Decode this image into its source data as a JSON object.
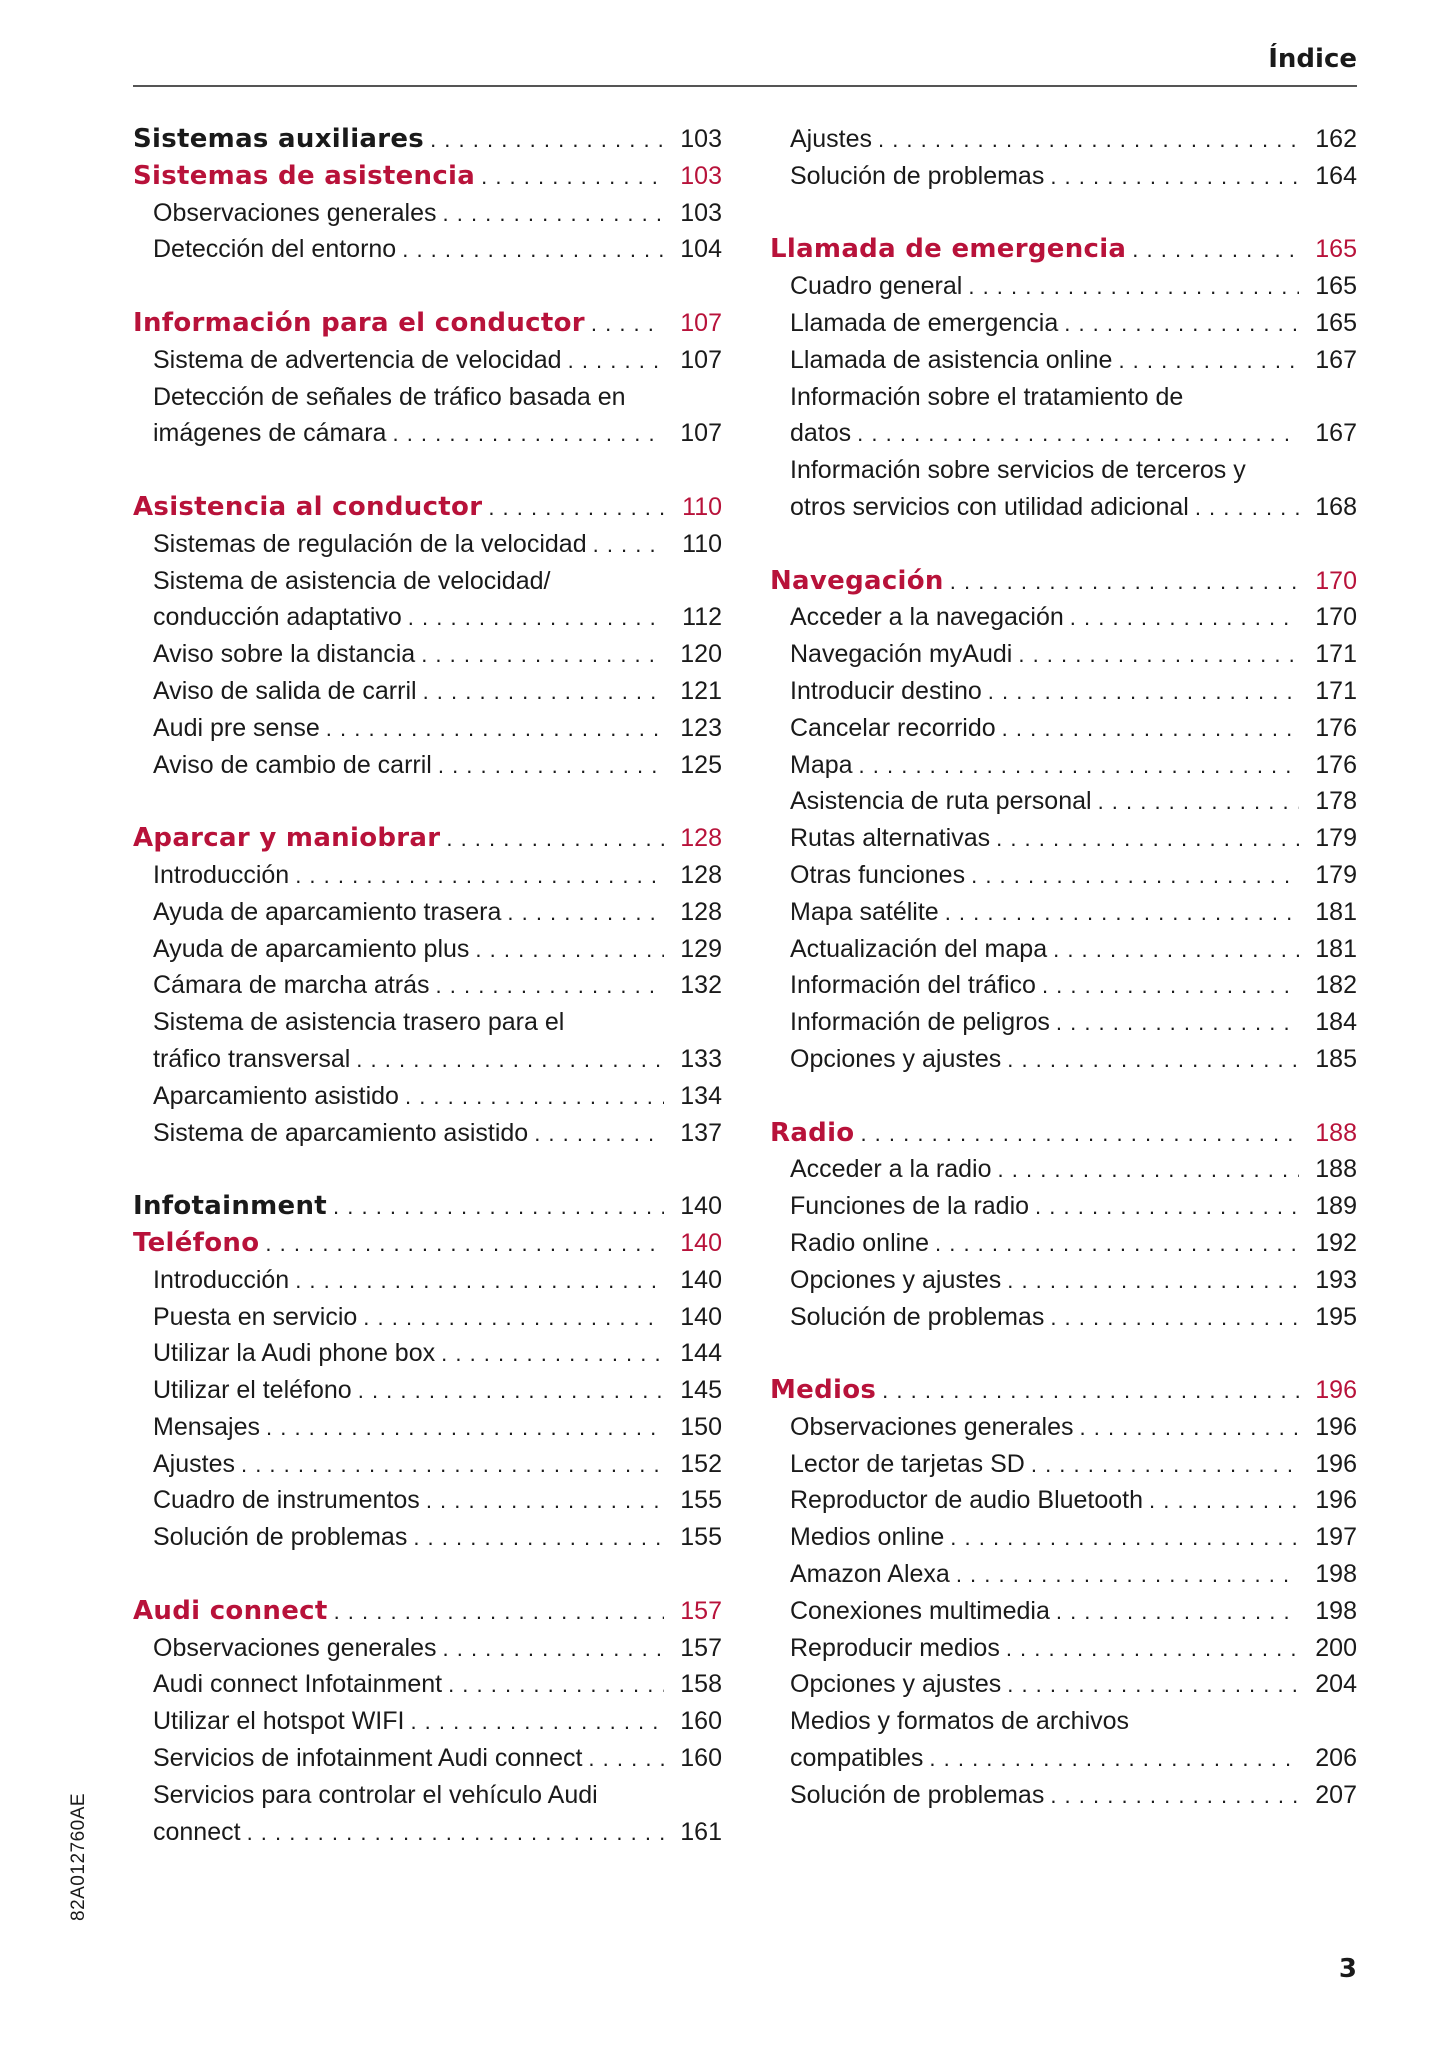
{
  "header": {
    "title": "Índice"
  },
  "colors": {
    "accent": "#b8123a",
    "text": "#1a1a1a",
    "rule": "#555555"
  },
  "columns": [
    {
      "sections": [
        {
          "entries": [
            {
              "level": "chapter",
              "text": "Sistemas auxiliares",
              "page": "103"
            },
            {
              "level": "section",
              "text": "Sistemas de asistencia",
              "page": "103"
            },
            {
              "level": "item",
              "text": "Observaciones generales",
              "page": "103"
            },
            {
              "level": "item",
              "text": "Detección del entorno",
              "page": "104"
            }
          ]
        },
        {
          "entries": [
            {
              "level": "section",
              "text": "Información para el conductor",
              "page": "107"
            },
            {
              "level": "item",
              "text": "Sistema de advertencia de velocidad",
              "page": "107"
            },
            {
              "level": "item",
              "text": "Detección de señales de tráfico basada en",
              "text_cont": "imágenes de cámara",
              "page": "107"
            }
          ]
        },
        {
          "entries": [
            {
              "level": "section",
              "text": "Asistencia al conductor",
              "page": "110"
            },
            {
              "level": "item",
              "text": "Sistemas de regulación de la velocidad",
              "page": "110"
            },
            {
              "level": "item",
              "text": "Sistema de asistencia de velocidad/",
              "text_cont": "conducción adaptativo",
              "page": "112"
            },
            {
              "level": "item",
              "text": "Aviso sobre la distancia",
              "page": "120"
            },
            {
              "level": "item",
              "text": "Aviso de salida de carril",
              "page": "121"
            },
            {
              "level": "item",
              "text": "Audi pre sense",
              "page": "123"
            },
            {
              "level": "item",
              "text": "Aviso de cambio de carril",
              "page": "125"
            }
          ]
        },
        {
          "entries": [
            {
              "level": "section",
              "text": "Aparcar y maniobrar",
              "page": "128"
            },
            {
              "level": "item",
              "text": "Introducción",
              "page": "128"
            },
            {
              "level": "item",
              "text": "Ayuda de aparcamiento trasera",
              "page": "128"
            },
            {
              "level": "item",
              "text": "Ayuda de aparcamiento plus",
              "page": "129"
            },
            {
              "level": "item",
              "text": "Cámara de marcha atrás",
              "page": "132"
            },
            {
              "level": "item",
              "text": "Sistema de asistencia trasero para el",
              "text_cont": "tráfico transversal",
              "page": "133"
            },
            {
              "level": "item",
              "text": "Aparcamiento asistido",
              "page": "134"
            },
            {
              "level": "item",
              "text": "Sistema de aparcamiento asistido",
              "page": "137"
            }
          ]
        },
        {
          "entries": [
            {
              "level": "chapter",
              "text": "Infotainment",
              "page": "140"
            },
            {
              "level": "section",
              "text": "Teléfono",
              "page": "140"
            },
            {
              "level": "item",
              "text": "Introducción",
              "page": "140"
            },
            {
              "level": "item",
              "text": "Puesta en servicio",
              "page": "140"
            },
            {
              "level": "item",
              "text": "Utilizar la Audi phone box",
              "page": "144"
            },
            {
              "level": "item",
              "text": "Utilizar el teléfono",
              "page": "145"
            },
            {
              "level": "item",
              "text": "Mensajes",
              "page": "150"
            },
            {
              "level": "item",
              "text": "Ajustes",
              "page": "152"
            },
            {
              "level": "item",
              "text": "Cuadro de instrumentos",
              "page": "155"
            },
            {
              "level": "item",
              "text": "Solución de problemas",
              "page": "155"
            }
          ]
        },
        {
          "entries": [
            {
              "level": "section",
              "text": "Audi connect",
              "page": "157"
            },
            {
              "level": "item",
              "text": "Observaciones generales",
              "page": "157"
            },
            {
              "level": "item",
              "text": "Audi connect Infotainment",
              "page": "158"
            },
            {
              "level": "item",
              "text": "Utilizar el hotspot WIFI",
              "page": "160"
            },
            {
              "level": "item",
              "text": "Servicios de infotainment Audi connect",
              "page": "160"
            },
            {
              "level": "item",
              "text": "Servicios para controlar el vehículo Audi",
              "text_cont": "connect",
              "page": "161"
            }
          ]
        }
      ]
    },
    {
      "sections": [
        {
          "entries": [
            {
              "level": "item",
              "text": "Ajustes",
              "page": "162"
            },
            {
              "level": "item",
              "text": "Solución de problemas",
              "page": "164"
            }
          ]
        },
        {
          "entries": [
            {
              "level": "section",
              "text": "Llamada de emergencia",
              "page": "165"
            },
            {
              "level": "item",
              "text": "Cuadro general",
              "page": "165"
            },
            {
              "level": "item",
              "text": "Llamada de emergencia",
              "page": "165"
            },
            {
              "level": "item",
              "text": "Llamada de asistencia online",
              "page": "167"
            },
            {
              "level": "item",
              "text": "Información sobre el tratamiento de",
              "text_cont": "datos",
              "page": "167"
            },
            {
              "level": "item",
              "text": "Información sobre servicios de terceros y",
              "text_cont": "otros servicios con utilidad adicional",
              "page": "168"
            }
          ]
        },
        {
          "entries": [
            {
              "level": "section",
              "text": "Navegación",
              "page": "170"
            },
            {
              "level": "item",
              "text": "Acceder a la navegación",
              "page": "170"
            },
            {
              "level": "item",
              "text": "Navegación myAudi",
              "page": "171"
            },
            {
              "level": "item",
              "text": "Introducir destino",
              "page": "171"
            },
            {
              "level": "item",
              "text": "Cancelar recorrido",
              "page": "176"
            },
            {
              "level": "item",
              "text": "Mapa",
              "page": "176"
            },
            {
              "level": "item",
              "text": "Asistencia de ruta personal",
              "page": "178"
            },
            {
              "level": "item",
              "text": "Rutas alternativas",
              "page": "179"
            },
            {
              "level": "item",
              "text": "Otras funciones",
              "page": "179"
            },
            {
              "level": "item",
              "text": "Mapa satélite",
              "page": "181"
            },
            {
              "level": "item",
              "text": "Actualización del mapa",
              "page": "181"
            },
            {
              "level": "item",
              "text": "Información del tráfico",
              "page": "182"
            },
            {
              "level": "item",
              "text": "Información de peligros",
              "page": "184"
            },
            {
              "level": "item",
              "text": "Opciones y ajustes",
              "page": "185"
            }
          ]
        },
        {
          "entries": [
            {
              "level": "section",
              "text": "Radio",
              "page": "188"
            },
            {
              "level": "item",
              "text": "Acceder a la radio",
              "page": "188"
            },
            {
              "level": "item",
              "text": "Funciones de la radio",
              "page": "189"
            },
            {
              "level": "item",
              "text": "Radio online",
              "page": "192"
            },
            {
              "level": "item",
              "text": "Opciones y ajustes",
              "page": "193"
            },
            {
              "level": "item",
              "text": "Solución de problemas",
              "page": "195"
            }
          ]
        },
        {
          "entries": [
            {
              "level": "section",
              "text": "Medios",
              "page": "196"
            },
            {
              "level": "item",
              "text": "Observaciones generales",
              "page": "196"
            },
            {
              "level": "item",
              "text": "Lector de tarjetas SD",
              "page": "196"
            },
            {
              "level": "item",
              "text": "Reproductor de audio Bluetooth",
              "page": "196"
            },
            {
              "level": "item",
              "text": "Medios online",
              "page": "197"
            },
            {
              "level": "item",
              "text": "Amazon Alexa",
              "page": "198"
            },
            {
              "level": "item",
              "text": "Conexiones multimedia",
              "page": "198"
            },
            {
              "level": "item",
              "text": "Reproducir medios",
              "page": "200"
            },
            {
              "level": "item",
              "text": "Opciones y ajustes",
              "page": "204"
            },
            {
              "level": "item",
              "text": "Medios y formatos de archivos",
              "text_cont": "compatibles",
              "page": "206"
            },
            {
              "level": "item",
              "text": "Solución de problemas",
              "page": "207"
            }
          ]
        }
      ]
    }
  ],
  "footer": {
    "side_code": "82A012760AE",
    "page_number": "3"
  }
}
